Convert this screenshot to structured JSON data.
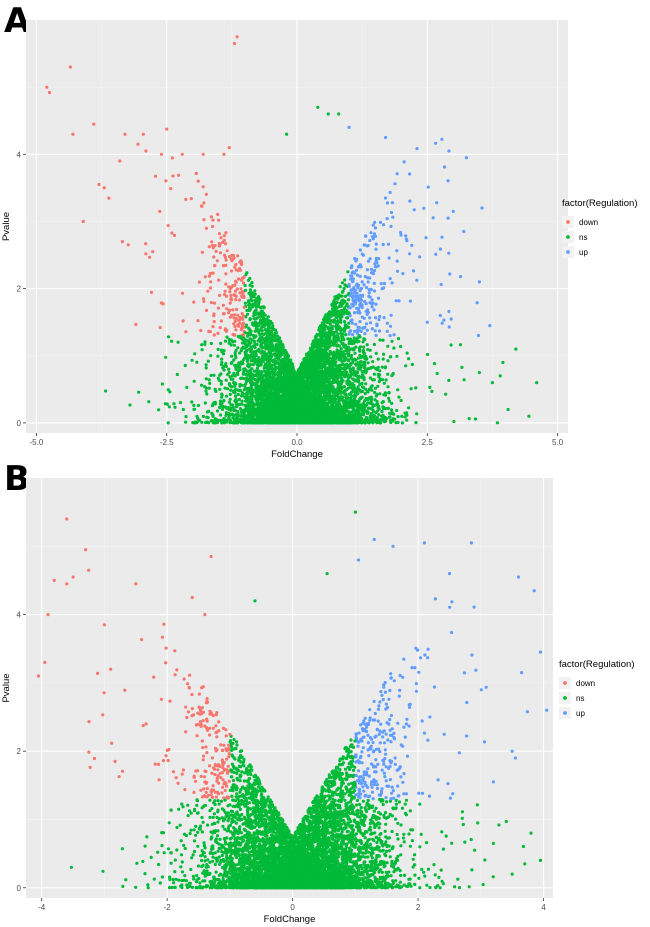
{
  "chart_data": [
    {
      "panel": "A",
      "type": "scatter",
      "title": "",
      "xlabel": "FoldChange",
      "ylabel": "Pvalue",
      "xlim": [
        -5.2,
        5.2
      ],
      "ylim": [
        -0.15,
        6.0
      ],
      "xticks": [
        -5.0,
        -2.5,
        0.0,
        2.5,
        5.0
      ],
      "xtick_labels": [
        "-5.0",
        "-2.5",
        "0.0",
        "2.5",
        "5.0"
      ],
      "yticks": [
        0,
        2,
        4
      ],
      "ytick_labels": [
        "0",
        "2",
        "4"
      ],
      "grid": true,
      "legend": {
        "title": "factor(Regulation)",
        "placement": "right",
        "entries": [
          {
            "label": "down",
            "color": "#F8766D"
          },
          {
            "label": "ns",
            "color": "#00BA38"
          },
          {
            "label": "up",
            "color": "#619CFF"
          }
        ]
      },
      "thresholds": {
        "fold_change": 1.0,
        "pvalue": 1.3
      },
      "series": [
        {
          "name": "down",
          "color": "#F8766D",
          "highlight_points": [
            {
              "x": -1.2,
              "y": 5.65
            },
            {
              "x": -1.15,
              "y": 5.75
            },
            {
              "x": -4.8,
              "y": 5.0
            },
            {
              "x": -4.75,
              "y": 4.92
            },
            {
              "x": -4.35,
              "y": 5.3
            },
            {
              "x": -4.3,
              "y": 4.3
            },
            {
              "x": -3.9,
              "y": 4.45
            },
            {
              "x": -3.8,
              "y": 3.55
            },
            {
              "x": -3.7,
              "y": 3.5
            },
            {
              "x": -4.1,
              "y": 3.0
            },
            {
              "x": -3.3,
              "y": 4.3
            },
            {
              "x": -2.95,
              "y": 4.3
            },
            {
              "x": -3.05,
              "y": 4.15
            },
            {
              "x": -2.9,
              "y": 4.05
            },
            {
              "x": -3.4,
              "y": 3.9
            },
            {
              "x": -3.35,
              "y": 2.7
            },
            {
              "x": -2.6,
              "y": 4.0
            },
            {
              "x": -2.2,
              "y": 4.0
            },
            {
              "x": -1.8,
              "y": 4.0
            },
            {
              "x": -1.4,
              "y": 4.0
            },
            {
              "x": -1.3,
              "y": 4.1
            }
          ],
          "region": {
            "x_min": -3.6,
            "x_max": -1.0,
            "y_min": 1.3,
            "y_max": 3.9,
            "count": 520
          }
        },
        {
          "name": "ns",
          "color": "#00BA38",
          "highlight_points": [
            {
              "x": 0.4,
              "y": 4.7
            },
            {
              "x": 0.6,
              "y": 4.6
            },
            {
              "x": 0.8,
              "y": 4.6
            },
            {
              "x": -0.2,
              "y": 4.3
            },
            {
              "x": 4.6,
              "y": 0.6
            },
            {
              "x": 4.45,
              "y": 0.1
            },
            {
              "x": 4.2,
              "y": 1.1
            },
            {
              "x": 4.05,
              "y": 0.2
            },
            {
              "x": 3.95,
              "y": 0.9
            },
            {
              "x": 3.9,
              "y": 0.7
            },
            {
              "x": 3.75,
              "y": 0.6
            },
            {
              "x": 3.5,
              "y": 0.75
            }
          ],
          "region": {
            "x_min": -1.0,
            "x_max": 4.6,
            "y_min": 0.0,
            "y_max": 4.7,
            "count": 6000
          }
        },
        {
          "name": "up",
          "color": "#619CFF",
          "highlight_points": [
            {
              "x": 1.0,
              "y": 4.4
            },
            {
              "x": 1.7,
              "y": 4.25
            },
            {
              "x": 3.25,
              "y": 3.95
            },
            {
              "x": 3.2,
              "y": 2.85
            },
            {
              "x": 3.55,
              "y": 3.2
            },
            {
              "x": 3.5,
              "y": 2.1
            },
            {
              "x": 3.7,
              "y": 1.45
            },
            {
              "x": 2.9,
              "y": 3.05
            },
            {
              "x": 3.0,
              "y": 3.15
            },
            {
              "x": 2.75,
              "y": 1.6
            },
            {
              "x": 2.5,
              "y": 1.5
            }
          ],
          "region": {
            "x_min": 1.0,
            "x_max": 3.6,
            "y_min": 1.3,
            "y_max": 4.3,
            "count": 520
          }
        }
      ]
    },
    {
      "panel": "B",
      "type": "scatter",
      "title": "",
      "xlabel": "FoldChange",
      "ylabel": "Pvalue",
      "xlim": [
        -4.25,
        4.15
      ],
      "ylim": [
        -0.15,
        6.0
      ],
      "xticks": [
        -4,
        -2,
        0,
        2,
        4
      ],
      "xtick_labels": [
        "-4",
        "-2",
        "0",
        "2",
        "4"
      ],
      "yticks": [
        0,
        2,
        4
      ],
      "ytick_labels": [
        "0",
        "2",
        "4"
      ],
      "grid": true,
      "legend": {
        "title": "factor(Regulation)",
        "placement": "right",
        "entries": [
          {
            "label": "down",
            "color": "#F8766D"
          },
          {
            "label": "ns",
            "color": "#00BA38"
          },
          {
            "label": "up",
            "color": "#619CFF"
          }
        ]
      },
      "thresholds": {
        "fold_change": 1.0,
        "pvalue": 1.3
      },
      "series": [
        {
          "name": "down",
          "color": "#F8766D",
          "highlight_points": [
            {
              "x": -3.6,
              "y": 5.4
            },
            {
              "x": -3.3,
              "y": 4.95
            },
            {
              "x": -3.25,
              "y": 4.65
            },
            {
              "x": -3.5,
              "y": 4.55
            },
            {
              "x": -3.6,
              "y": 4.45
            },
            {
              "x": -3.8,
              "y": 4.5
            },
            {
              "x": -3.9,
              "y": 4.0
            },
            {
              "x": -3.95,
              "y": 3.3
            },
            {
              "x": -4.05,
              "y": 3.1
            },
            {
              "x": -1.3,
              "y": 4.85
            },
            {
              "x": -1.6,
              "y": 4.25
            },
            {
              "x": -2.5,
              "y": 4.45
            },
            {
              "x": -3.0,
              "y": 3.85
            },
            {
              "x": -1.4,
              "y": 4.0
            },
            {
              "x": -2.9,
              "y": 3.2
            }
          ],
          "region": {
            "x_min": -4.0,
            "x_max": -1.0,
            "y_min": 1.3,
            "y_max": 3.9,
            "count": 650
          }
        },
        {
          "name": "ns",
          "color": "#00BA38",
          "highlight_points": [
            {
              "x": 1.0,
              "y": 5.5
            },
            {
              "x": 0.55,
              "y": 4.6
            },
            {
              "x": -0.6,
              "y": 4.2
            },
            {
              "x": 3.8,
              "y": 0.8
            },
            {
              "x": 3.95,
              "y": 0.4
            },
            {
              "x": 3.7,
              "y": 0.35
            },
            {
              "x": 3.5,
              "y": 0.2
            },
            {
              "x": 3.2,
              "y": 0.65
            },
            {
              "x": 2.95,
              "y": 0.95
            },
            {
              "x": 2.9,
              "y": 0.55
            }
          ],
          "region": {
            "x_min": -1.0,
            "x_max": 3.9,
            "y_min": 0.0,
            "y_max": 4.7,
            "count": 6500
          }
        },
        {
          "name": "up",
          "color": "#619CFF",
          "highlight_points": [
            {
              "x": 1.3,
              "y": 5.1
            },
            {
              "x": 1.6,
              "y": 5.0
            },
            {
              "x": 2.1,
              "y": 5.05
            },
            {
              "x": 2.85,
              "y": 5.05
            },
            {
              "x": 1.05,
              "y": 4.8
            },
            {
              "x": 2.5,
              "y": 4.6
            },
            {
              "x": 3.6,
              "y": 4.55
            },
            {
              "x": 3.85,
              "y": 4.35
            },
            {
              "x": 3.95,
              "y": 3.45
            },
            {
              "x": 4.05,
              "y": 2.6
            },
            {
              "x": 3.65,
              "y": 3.15
            },
            {
              "x": 3.5,
              "y": 2.0
            },
            {
              "x": 3.55,
              "y": 1.9
            },
            {
              "x": 3.2,
              "y": 1.55
            }
          ],
          "region": {
            "x_min": 1.0,
            "x_max": 3.8,
            "y_min": 1.3,
            "y_max": 4.4,
            "count": 560
          }
        }
      ]
    }
  ]
}
